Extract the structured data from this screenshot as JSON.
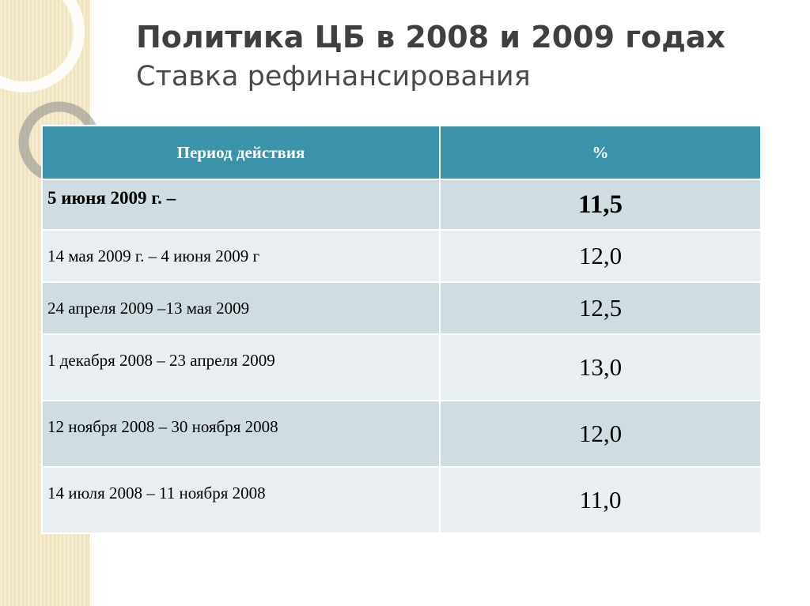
{
  "title": "Политика ЦБ в 2008 и 2009 годах",
  "subtitle": "Ставка рефинансирования",
  "table": {
    "headers": [
      "Период действия",
      "%"
    ],
    "rows": [
      {
        "period": "5 июня 2009 г. –",
        "rate": "11,5"
      },
      {
        "period": "14 мая 2009 г. – 4 июня 2009 г",
        "rate": "12,0"
      },
      {
        "period": "24 апреля 2009 –13 мая 2009",
        "rate": "12,5"
      },
      {
        "period": "1 декабря 2008 – 23 апреля 2009",
        "rate": "13,0"
      },
      {
        "period": "12 ноября 2008 – 30 ноября 2008",
        "rate": "12,0"
      },
      {
        "period": "14 июля 2008 – 11 ноября 2008",
        "rate": "11,0"
      }
    ]
  },
  "colors": {
    "header_bg": "#3a93ab",
    "row_dark": "#cfdde3",
    "row_light": "#e8eef1",
    "side_band": "#f5ecd0"
  }
}
